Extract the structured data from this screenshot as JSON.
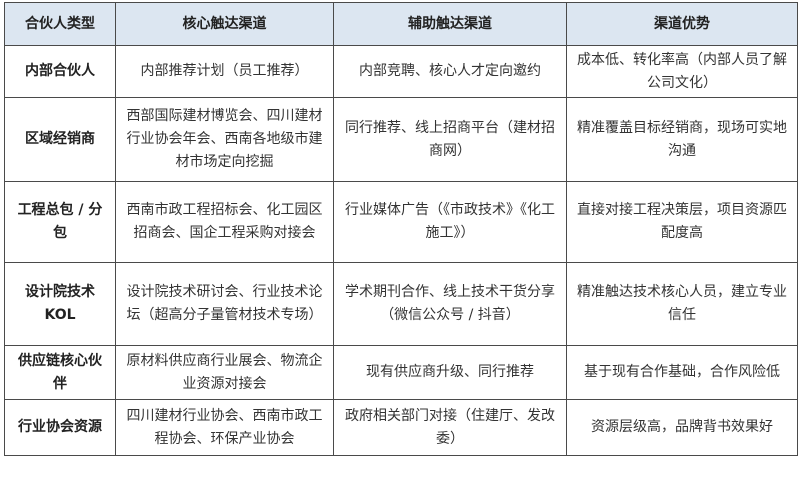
{
  "headers": [
    "合伙人类型",
    "核心触达渠道",
    "辅助触达渠道",
    "渠道优势"
  ],
  "rows": [
    {
      "type": "内部合伙人",
      "core": "内部推荐计划（员工推荐）",
      "aux": "内部竞聘、核心人才定向邀约",
      "advantage": "成本低、转化率高（内部人员了解公司文化）"
    },
    {
      "type": "区域经销商",
      "core": "西部国际建材博览会、四川建材行业协会年会、西南各地级市建材市场定向挖掘",
      "aux": "同行推荐、线上招商平台（建材招商网）",
      "advantage": "精准覆盖目标经销商，现场可实地沟通"
    },
    {
      "type": "工程总包 / 分包",
      "core": "西南市政工程招标会、化工园区招商会、国企工程采购对接会",
      "aux": "行业媒体广告（《市政技术》《化工施工》）",
      "advantage": "直接对接工程决策层，项目资源匹配度高"
    },
    {
      "type": "设计院技术 KOL",
      "core": "设计院技术研讨会、行业技术论坛（超高分子量管材技术专场）",
      "aux": "学术期刊合作、线上技术干货分享（微信公众号 / 抖音）",
      "advantage": "精准触达技术核心人员，建立专业信任"
    },
    {
      "type": "供应链核心伙伴",
      "core": "原材料供应商行业展会、物流企业资源对接会",
      "aux": "现有供应商升级、同行推荐",
      "advantage": "基于现有合作基础，合作风险低"
    },
    {
      "type": "行业协会资源",
      "core": "四川建材行业协会、西南市政工程协会、环保产业协会",
      "aux": "政府相关部门对接（住建厅、发改委）",
      "advantage": "资源层级高，品牌背书效果好"
    }
  ]
}
